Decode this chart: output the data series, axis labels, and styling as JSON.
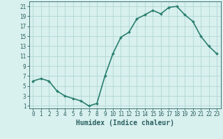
{
  "x": [
    0,
    1,
    2,
    3,
    4,
    5,
    6,
    7,
    8,
    9,
    10,
    11,
    12,
    13,
    14,
    15,
    16,
    17,
    18,
    19,
    20,
    21,
    22,
    23
  ],
  "y": [
    6,
    6.5,
    6,
    4,
    3,
    2.5,
    2,
    1,
    1.5,
    7,
    11.5,
    14.8,
    15.8,
    18.5,
    19.3,
    20.2,
    19.5,
    20.8,
    21,
    19.3,
    18,
    15,
    13,
    11.5
  ],
  "line_color": "#2a7f6f",
  "marker": "D",
  "marker_size": 2,
  "background_color": "#d8f0ee",
  "grid_color": "#b0d8d4",
  "xlabel": "Humidex (Indice chaleur)",
  "xlim": [
    -0.5,
    23.5
  ],
  "ylim": [
    0.5,
    22
  ],
  "yticks": [
    1,
    3,
    5,
    7,
    9,
    11,
    13,
    15,
    17,
    19,
    21
  ],
  "xticks": [
    0,
    1,
    2,
    3,
    4,
    5,
    6,
    7,
    8,
    9,
    10,
    11,
    12,
    13,
    14,
    15,
    16,
    17,
    18,
    19,
    20,
    21,
    22,
    23
  ],
  "tick_color": "#2a6060",
  "font_color": "#2a6060",
  "xlabel_fontsize": 7,
  "tick_fontsize": 5.5,
  "line_width": 1.2
}
